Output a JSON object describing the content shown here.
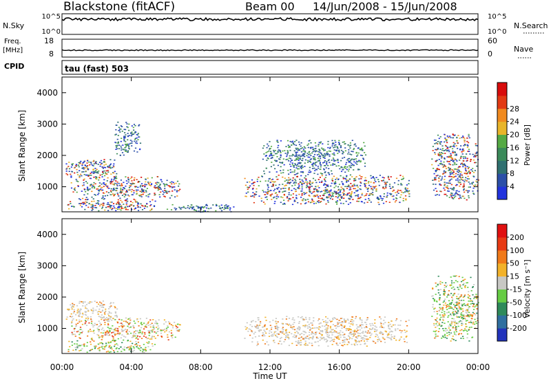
{
  "header": {
    "station": "Blackstone (fitACF)",
    "beam": "Beam 00",
    "date_range": "14/Jun/2008 - 15/Jun/2008"
  },
  "panels": {
    "nsky_label": "N.Sky",
    "nsky_ticks": [
      "10^5",
      "10^0"
    ],
    "nsearch_label": "N.Search",
    "nsearch_ticks": [
      "10^5",
      "10^0"
    ],
    "freq_label_1": "Freq.",
    "freq_label_2": "[MHz]",
    "freq_ticks": [
      "18",
      "8"
    ],
    "nave_label": "Nave",
    "nave_ticks": [
      "60",
      "0"
    ],
    "cpid_label": "CPID",
    "cpid_value": "tau (fast) 503"
  },
  "chart_data": [
    {
      "type": "heatmap",
      "title": "",
      "ylabel": "Slant Range [km]",
      "yticks": [
        "1000",
        "2000",
        "3000",
        "4000"
      ],
      "ylim": [
        200,
        4500
      ],
      "xlim": [
        "00:00",
        "00:00"
      ],
      "colorbar": {
        "label": "Power [dB]",
        "ticks": [
          "4",
          "8",
          "12",
          "16",
          "20",
          "24",
          "28"
        ],
        "colors": [
          "#2233dd",
          "#2b4fa8",
          "#2f7070",
          "#3b8a5a",
          "#55aa44",
          "#e8b52a",
          "#f08a1f",
          "#e23a14",
          "#d80c0c"
        ]
      },
      "echo_regions": [
        {
          "t": [
            0.2,
            3.2
          ],
          "r": [
            1250,
            1900
          ],
          "level": "high"
        },
        {
          "t": [
            0.5,
            6.8
          ],
          "r": [
            650,
            1350
          ],
          "level": "high"
        },
        {
          "t": [
            0.3,
            5.5
          ],
          "r": [
            250,
            650
          ],
          "level": "high"
        },
        {
          "t": [
            3.0,
            4.5
          ],
          "r": [
            2000,
            3100
          ],
          "level": "low"
        },
        {
          "t": [
            6.0,
            10.0
          ],
          "r": [
            200,
            450
          ],
          "level": "low"
        },
        {
          "t": [
            10.5,
            20.0
          ],
          "r": [
            450,
            1400
          ],
          "level": "high"
        },
        {
          "t": [
            11.5,
            17.5
          ],
          "r": [
            1400,
            2500
          ],
          "level": "low"
        },
        {
          "t": [
            21.3,
            24.0
          ],
          "r": [
            600,
            2700
          ],
          "level": "high"
        }
      ]
    },
    {
      "type": "heatmap",
      "title": "",
      "ylabel": "Slant Range [km]",
      "xlabel": "Time UT",
      "xticks": [
        "00:00",
        "04:00",
        "08:00",
        "12:00",
        "16:00",
        "20:00",
        "00:00"
      ],
      "yticks": [
        "1000",
        "2000",
        "3000",
        "4000"
      ],
      "ylim": [
        200,
        4500
      ],
      "colorbar": {
        "label": "Velocity [m s⁻¹]",
        "ticks": [
          "200",
          "100",
          "50",
          "15",
          "-15",
          "-50",
          "-100",
          "-200"
        ],
        "colors": [
          "#2233bb",
          "#2f6fa0",
          "#2e8a5a",
          "#66cc44",
          "#c8c8c4",
          "#f2b22a",
          "#f07a1a",
          "#e83a14",
          "#e01010"
        ]
      },
      "echo_regions": [
        {
          "t": [
            0.2,
            3.2
          ],
          "r": [
            1250,
            1900
          ],
          "level": "ground"
        },
        {
          "t": [
            0.5,
            6.8
          ],
          "r": [
            650,
            1350
          ],
          "level": "mixed"
        },
        {
          "t": [
            0.3,
            5.5
          ],
          "r": [
            250,
            650
          ],
          "level": "positive"
        },
        {
          "t": [
            10.5,
            20.0
          ],
          "r": [
            450,
            1400
          ],
          "level": "ground"
        },
        {
          "t": [
            21.3,
            24.0
          ],
          "r": [
            600,
            2700
          ],
          "level": "positive"
        }
      ]
    }
  ]
}
